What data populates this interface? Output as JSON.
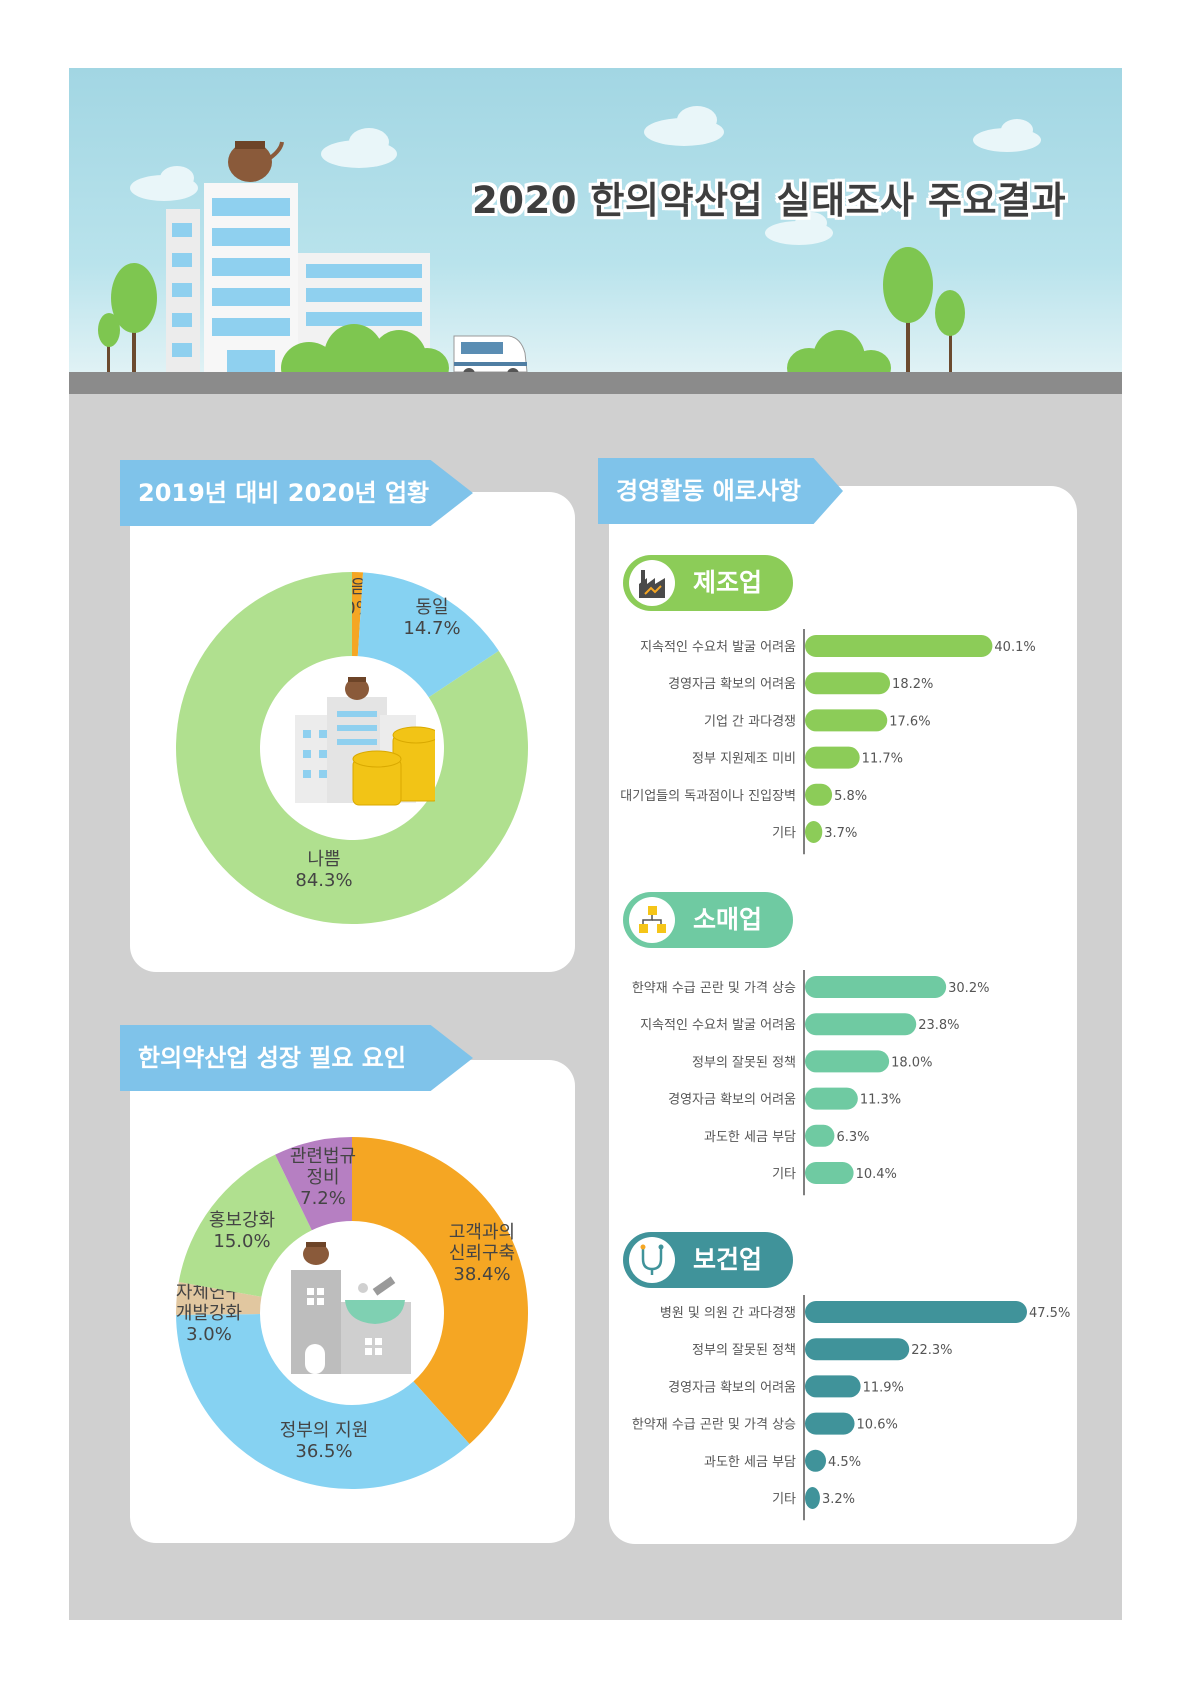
{
  "header": {
    "title": "2020 한의약산업 실태조사 주요결과"
  },
  "sections": {
    "business": {
      "title": "2019년 대비 2020년 업황"
    },
    "growth": {
      "title": "한의약산업 성장 필요 요인"
    },
    "obstacles": {
      "title": "경영활동 애로사항"
    }
  },
  "colors": {
    "green_light": "#b0e08f",
    "blue_light": "#86d2f2",
    "orange": "#f5a623",
    "tan": "#e1c7a0",
    "purple": "#b67fc2",
    "manufacturing": "#8ccc58",
    "retail": "#6fcaa2",
    "health": "#40939a",
    "banner": "#7fc3ea"
  },
  "chart_data": [
    {
      "type": "pie",
      "id": "business",
      "slices": [
        {
          "label": "좋음",
          "value": 1.0,
          "value_label": "1.0%",
          "color": "#f5a623"
        },
        {
          "label": "동일",
          "value": 14.7,
          "value_label": "14.7%",
          "color": "#86d2f2"
        },
        {
          "label": "나쁨",
          "value": 84.3,
          "value_label": "84.3%",
          "color": "#b0e08f"
        }
      ]
    },
    {
      "type": "pie",
      "id": "growth",
      "slices": [
        {
          "label": "고객과의 신뢰구축",
          "lines": [
            "고객과의",
            "신뢰구축"
          ],
          "value": 38.4,
          "value_label": "38.4%",
          "color": "#f5a623"
        },
        {
          "label": "정부의 지원",
          "lines": [
            "정부의 지원"
          ],
          "value": 36.5,
          "value_label": "36.5%",
          "color": "#86d2f2"
        },
        {
          "label": "자체연구 개발강화",
          "lines": [
            "자체연구",
            "개발강화"
          ],
          "value": 3.0,
          "value_label": "3.0%",
          "color": "#e1c7a0"
        },
        {
          "label": "홍보강화",
          "lines": [
            "홍보강화"
          ],
          "value": 15.0,
          "value_label": "15.0%",
          "color": "#b0e08f"
        },
        {
          "label": "관련법규 정비",
          "lines": [
            "관련법규",
            "정비"
          ],
          "value": 7.2,
          "value_label": "7.2%",
          "color": "#b67fc2"
        }
      ]
    },
    {
      "type": "bar",
      "id": "manufacturing",
      "title": "제조업",
      "categories": [
        "지속적인 수요처 발굴 어려움",
        "경영자금 확보의 어려움",
        "기업 간 과다경쟁",
        "정부 지원제조 미비",
        "대기업들의 독과점이나 진입장벽",
        "기타"
      ],
      "values": [
        40.1,
        18.2,
        17.6,
        11.7,
        5.8,
        3.7
      ],
      "labels": [
        "40.1%",
        "18.2%",
        "17.6%",
        "11.7%",
        "5.8%",
        "3.7%"
      ],
      "color": "#8ccc58"
    },
    {
      "type": "bar",
      "id": "retail",
      "title": "소매업",
      "categories": [
        "한약재 수급 곤란 및 가격 상승",
        "지속적인 수요처 발굴 어려움",
        "정부의 잘못된 정책",
        "경영자금 확보의 어려움",
        "과도한 세금 부담",
        "기타"
      ],
      "values": [
        30.2,
        23.8,
        18.0,
        11.3,
        6.3,
        10.4
      ],
      "labels": [
        "30.2%",
        "23.8%",
        "18.0%",
        "11.3%",
        "6.3%",
        "10.4%"
      ],
      "color": "#6fcaa2"
    },
    {
      "type": "bar",
      "id": "health",
      "title": "보건업",
      "categories": [
        "병원 및 의원 간 과다경쟁",
        "정부의 잘못된 정책",
        "경영자금 확보의 어려움",
        "한약재 수급 곤란 및 가격 상승",
        "과도한 세금 부담",
        "기타"
      ],
      "values": [
        47.5,
        22.3,
        11.9,
        10.6,
        4.5,
        3.2
      ],
      "labels": [
        "47.5%",
        "22.3%",
        "11.9%",
        "10.6%",
        "4.5%",
        "3.2%"
      ],
      "color": "#40939a"
    }
  ]
}
